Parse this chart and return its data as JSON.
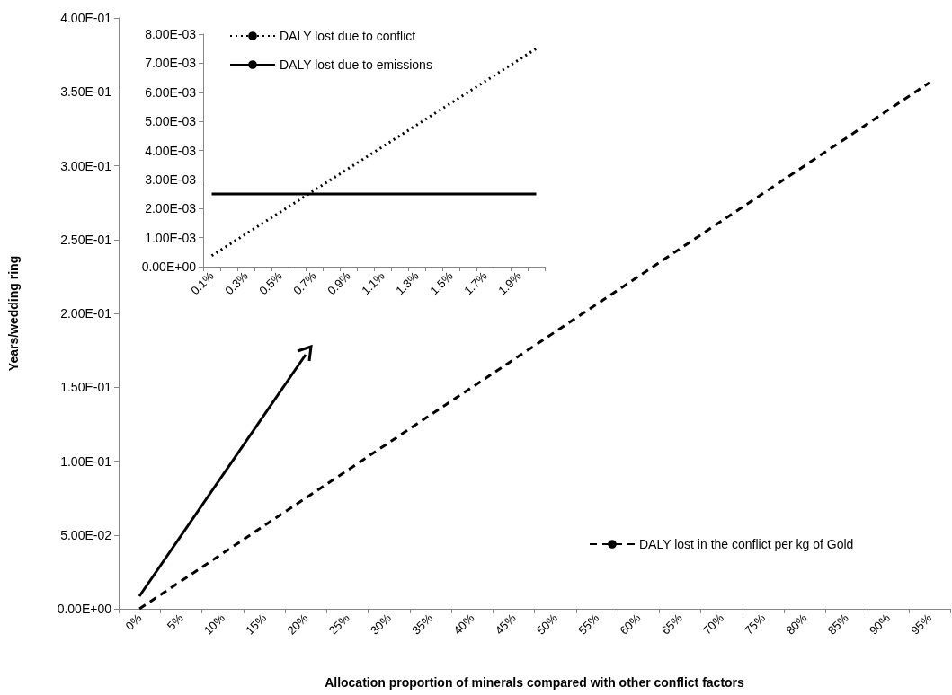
{
  "chart_data": [
    {
      "type": "line",
      "xlabel": "Allocation proportion of minerals compared with other conflict factors",
      "ylabel": "Years/wedding ring",
      "categories": [
        "0%",
        "5%",
        "10%",
        "15%",
        "20%",
        "25%",
        "30%",
        "35%",
        "40%",
        "45%",
        "50%",
        "55%",
        "60%",
        "65%",
        "70%",
        "75%",
        "80%",
        "85%",
        "90%",
        "95%"
      ],
      "series": [
        {
          "name": "DALY lost in the conflict per kg of Gold",
          "color": "#000000",
          "line_style": "dashed",
          "values": [
            0,
            0.01875,
            0.0375,
            0.05625,
            0.075,
            0.09375,
            0.1125,
            0.13125,
            0.15,
            0.16875,
            0.1875,
            0.20625,
            0.225,
            0.24375,
            0.2625,
            0.28125,
            0.3,
            0.31875,
            0.3375,
            0.35625
          ]
        }
      ],
      "ylim": [
        0,
        0.4
      ],
      "yticks": [
        {
          "value": 0,
          "label": "0.00E+00"
        },
        {
          "value": 0.05,
          "label": "5.00E-02"
        },
        {
          "value": 0.1,
          "label": "1.00E-01"
        },
        {
          "value": 0.15,
          "label": "1.50E-01"
        },
        {
          "value": 0.2,
          "label": "2.00E-01"
        },
        {
          "value": 0.25,
          "label": "2.50E-01"
        },
        {
          "value": 0.3,
          "label": "3.00E-01"
        },
        {
          "value": 0.35,
          "label": "3.50E-01"
        },
        {
          "value": 0.4,
          "label": "4.00E-01"
        }
      ],
      "grid": false,
      "legend": "bottom right",
      "marker": "none"
    },
    {
      "type": "line",
      "categories": [
        "0.1%",
        null,
        "0.3%",
        null,
        "0.5%",
        null,
        "0.7%",
        null,
        "0.9%",
        null,
        "1.1%",
        null,
        "1.3%",
        null,
        "1.5%",
        null,
        "1.7%",
        null,
        "1.9%",
        null
      ],
      "series": [
        {
          "name": "DALY lost due to conflict",
          "color": "#000000",
          "line_style": "dotted",
          "values": [
            0.000375,
            0.00075,
            0.001125,
            0.0015,
            0.001875,
            0.00225,
            0.002625,
            0.003,
            0.003375,
            0.00375,
            0.004125,
            0.0045,
            0.004875,
            0.00525,
            0.005625,
            0.006,
            0.006375,
            0.00675,
            0.007125,
            0.0075
          ]
        },
        {
          "name": "DALY lost due to emissions",
          "color": "#000000",
          "line_style": "solid",
          "values": [
            0.0025,
            0.0025,
            0.0025,
            0.0025,
            0.0025,
            0.0025,
            0.0025,
            0.0025,
            0.0025,
            0.0025,
            0.0025,
            0.0025,
            0.0025,
            0.0025,
            0.0025,
            0.0025,
            0.0025,
            0.0025,
            0.0025,
            0.0025
          ]
        }
      ],
      "ylim": [
        0,
        0.008
      ],
      "yticks": [
        {
          "value": 0,
          "label": "0.00E+00"
        },
        {
          "value": 0.001,
          "label": "1.00E-03"
        },
        {
          "value": 0.002,
          "label": "2.00E-03"
        },
        {
          "value": 0.003,
          "label": "3.00E-03"
        },
        {
          "value": 0.004,
          "label": "4.00E-03"
        },
        {
          "value": 0.005,
          "label": "5.00E-03"
        },
        {
          "value": 0.006,
          "label": "6.00E-03"
        },
        {
          "value": 0.007,
          "label": "7.00E-03"
        },
        {
          "value": 0.008,
          "label": "8.00E-03"
        }
      ],
      "grid": false,
      "legend": "top left",
      "marker": "none"
    }
  ]
}
